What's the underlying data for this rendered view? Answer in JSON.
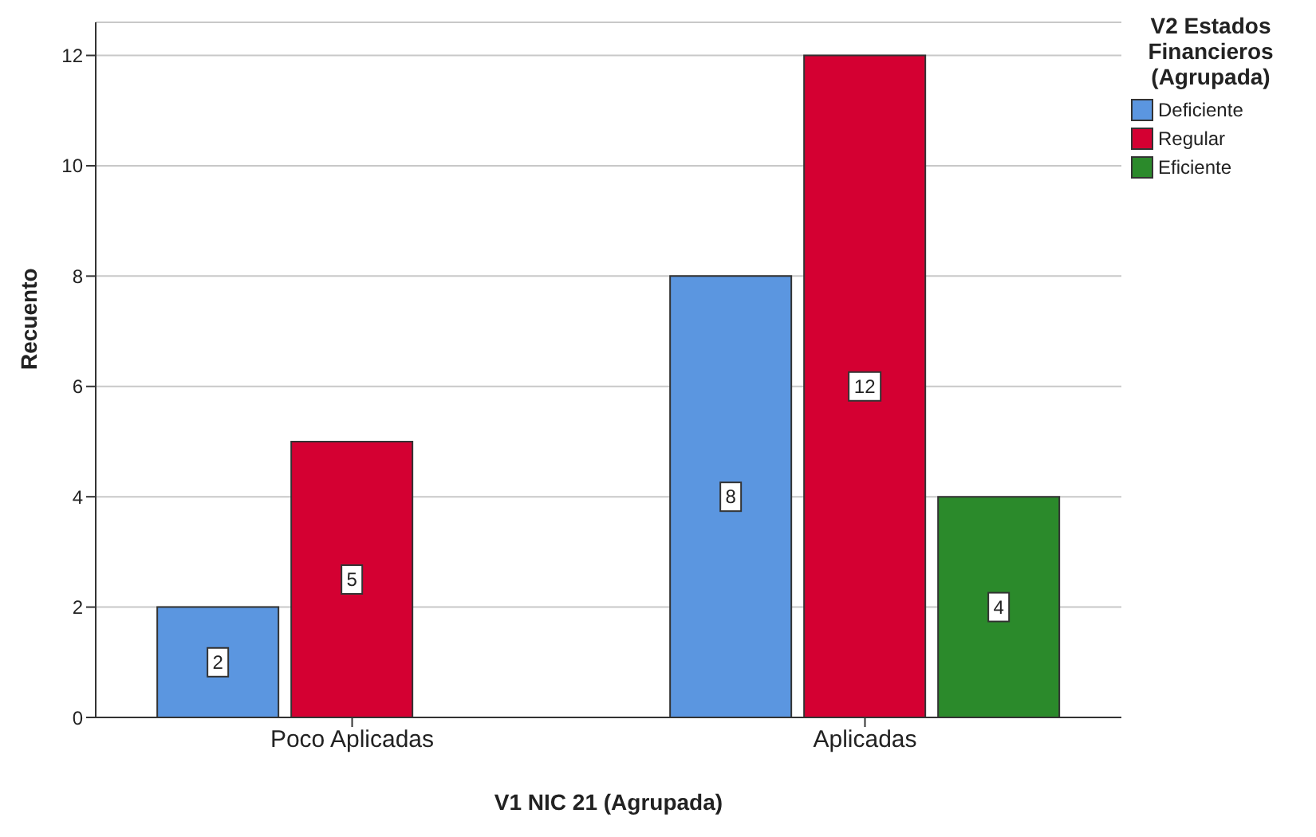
{
  "chart_data": {
    "type": "bar",
    "xlabel": "V1 NIC 21 (Agrupada)",
    "ylabel": "Recuento",
    "legend_title": "V2 Estados Financieros (Agrupada)",
    "categories": [
      "Poco Aplicadas",
      "Aplicadas"
    ],
    "series": [
      {
        "name": "Deficiente",
        "color": "#5b96e0",
        "values": [
          2,
          8
        ]
      },
      {
        "name": "Regular",
        "color": "#d40032",
        "values": [
          5,
          12
        ]
      },
      {
        "name": "Eficiente",
        "color": "#2b8a2b",
        "values": [
          null,
          4
        ]
      }
    ],
    "ylim": [
      0,
      12.6
    ],
    "yticks": [
      0,
      2,
      4,
      6,
      8,
      10,
      12
    ],
    "grid": "y",
    "legend": "top right",
    "data_labels": true
  }
}
